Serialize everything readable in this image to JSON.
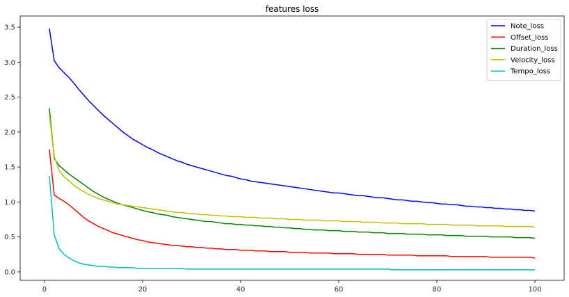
{
  "chart_data": {
    "type": "line",
    "title": "features loss",
    "xlabel": "",
    "ylabel": "",
    "xlim": [
      -4.95,
      105.95
    ],
    "ylim": [
      -0.12,
      3.66
    ],
    "xticks": [
      0,
      20,
      40,
      60,
      80,
      100
    ],
    "xtick_labels": [
      "0",
      "20",
      "40",
      "60",
      "80",
      "100"
    ],
    "yticks": [
      0.0,
      0.5,
      1.0,
      1.5,
      2.0,
      2.5,
      3.0,
      3.5
    ],
    "ytick_labels": [
      "0.0",
      "0.5",
      "1.0",
      "1.5",
      "2.0",
      "2.5",
      "3.0",
      "3.5"
    ],
    "grid": false,
    "legend_position": "top-right",
    "x": [
      1,
      2,
      3,
      4,
      5,
      6,
      7,
      8,
      9,
      10,
      11,
      12,
      13,
      14,
      15,
      16,
      17,
      18,
      19,
      20,
      21,
      22,
      23,
      24,
      25,
      26,
      27,
      28,
      29,
      30,
      31,
      32,
      33,
      34,
      35,
      36,
      37,
      38,
      39,
      40,
      41,
      42,
      43,
      44,
      45,
      46,
      47,
      48,
      49,
      50,
      51,
      52,
      53,
      54,
      55,
      56,
      57,
      58,
      59,
      60,
      61,
      62,
      63,
      64,
      65,
      66,
      67,
      68,
      69,
      70,
      71,
      72,
      73,
      74,
      75,
      76,
      77,
      78,
      79,
      80,
      81,
      82,
      83,
      84,
      85,
      86,
      87,
      88,
      89,
      90,
      91,
      92,
      93,
      94,
      95,
      96,
      97,
      98,
      99,
      100
    ],
    "series": [
      {
        "name": "Note_loss",
        "color": "#0000ff",
        "values": [
          3.48,
          3.02,
          2.92,
          2.85,
          2.78,
          2.7,
          2.61,
          2.53,
          2.45,
          2.38,
          2.31,
          2.24,
          2.18,
          2.12,
          2.06,
          2.0,
          1.95,
          1.9,
          1.86,
          1.82,
          1.78,
          1.75,
          1.71,
          1.68,
          1.65,
          1.62,
          1.59,
          1.57,
          1.54,
          1.52,
          1.5,
          1.48,
          1.46,
          1.44,
          1.42,
          1.4,
          1.38,
          1.37,
          1.35,
          1.33,
          1.32,
          1.3,
          1.29,
          1.28,
          1.27,
          1.26,
          1.25,
          1.24,
          1.23,
          1.22,
          1.21,
          1.2,
          1.19,
          1.18,
          1.17,
          1.16,
          1.15,
          1.14,
          1.13,
          1.13,
          1.12,
          1.11,
          1.1,
          1.09,
          1.09,
          1.08,
          1.07,
          1.06,
          1.06,
          1.05,
          1.04,
          1.03,
          1.03,
          1.02,
          1.01,
          1.01,
          1.0,
          0.99,
          0.99,
          0.98,
          0.97,
          0.97,
          0.96,
          0.96,
          0.95,
          0.94,
          0.94,
          0.93,
          0.93,
          0.92,
          0.92,
          0.91,
          0.91,
          0.9,
          0.9,
          0.89,
          0.89,
          0.88,
          0.88,
          0.87
        ]
      },
      {
        "name": "Offset_loss",
        "color": "#ff0000",
        "values": [
          1.75,
          1.1,
          1.05,
          1.01,
          0.96,
          0.9,
          0.84,
          0.78,
          0.73,
          0.69,
          0.65,
          0.62,
          0.59,
          0.56,
          0.54,
          0.52,
          0.5,
          0.48,
          0.46,
          0.45,
          0.43,
          0.42,
          0.41,
          0.4,
          0.39,
          0.38,
          0.38,
          0.37,
          0.36,
          0.36,
          0.35,
          0.35,
          0.34,
          0.34,
          0.33,
          0.33,
          0.32,
          0.32,
          0.32,
          0.31,
          0.31,
          0.31,
          0.3,
          0.3,
          0.3,
          0.29,
          0.29,
          0.29,
          0.29,
          0.28,
          0.28,
          0.28,
          0.28,
          0.27,
          0.27,
          0.27,
          0.27,
          0.27,
          0.26,
          0.26,
          0.26,
          0.26,
          0.26,
          0.25,
          0.25,
          0.25,
          0.25,
          0.25,
          0.25,
          0.24,
          0.24,
          0.24,
          0.24,
          0.24,
          0.24,
          0.23,
          0.23,
          0.23,
          0.23,
          0.23,
          0.23,
          0.23,
          0.22,
          0.22,
          0.22,
          0.22,
          0.22,
          0.22,
          0.22,
          0.22,
          0.21,
          0.21,
          0.21,
          0.21,
          0.21,
          0.21,
          0.21,
          0.21,
          0.21,
          0.2
        ]
      },
      {
        "name": "Duration_loss",
        "color": "#008000",
        "values": [
          2.34,
          1.62,
          1.52,
          1.46,
          1.4,
          1.35,
          1.3,
          1.25,
          1.2,
          1.15,
          1.11,
          1.07,
          1.04,
          1.01,
          0.98,
          0.96,
          0.94,
          0.92,
          0.9,
          0.88,
          0.86,
          0.85,
          0.83,
          0.82,
          0.81,
          0.79,
          0.78,
          0.77,
          0.76,
          0.75,
          0.74,
          0.73,
          0.72,
          0.72,
          0.71,
          0.7,
          0.69,
          0.69,
          0.68,
          0.68,
          0.67,
          0.67,
          0.66,
          0.66,
          0.65,
          0.65,
          0.64,
          0.64,
          0.63,
          0.63,
          0.62,
          0.62,
          0.61,
          0.61,
          0.6,
          0.6,
          0.6,
          0.59,
          0.59,
          0.59,
          0.58,
          0.58,
          0.58,
          0.57,
          0.57,
          0.57,
          0.56,
          0.56,
          0.56,
          0.55,
          0.55,
          0.55,
          0.55,
          0.54,
          0.54,
          0.54,
          0.54,
          0.53,
          0.53,
          0.53,
          0.53,
          0.52,
          0.52,
          0.52,
          0.52,
          0.51,
          0.51,
          0.51,
          0.51,
          0.51,
          0.5,
          0.5,
          0.5,
          0.5,
          0.5,
          0.49,
          0.49,
          0.49,
          0.49,
          0.48
        ]
      },
      {
        "name": "Velocity_loss",
        "color": "#bfbf00",
        "values": [
          2.25,
          1.65,
          1.45,
          1.36,
          1.3,
          1.24,
          1.19,
          1.15,
          1.11,
          1.08,
          1.05,
          1.03,
          1.01,
          0.99,
          0.97,
          0.96,
          0.95,
          0.94,
          0.93,
          0.92,
          0.91,
          0.9,
          0.89,
          0.88,
          0.87,
          0.86,
          0.85,
          0.85,
          0.84,
          0.83,
          0.83,
          0.82,
          0.82,
          0.81,
          0.81,
          0.8,
          0.8,
          0.79,
          0.79,
          0.79,
          0.78,
          0.78,
          0.78,
          0.77,
          0.77,
          0.77,
          0.76,
          0.76,
          0.76,
          0.75,
          0.75,
          0.75,
          0.74,
          0.74,
          0.74,
          0.74,
          0.73,
          0.73,
          0.73,
          0.73,
          0.72,
          0.72,
          0.72,
          0.72,
          0.71,
          0.71,
          0.71,
          0.71,
          0.7,
          0.7,
          0.7,
          0.7,
          0.69,
          0.69,
          0.69,
          0.69,
          0.69,
          0.68,
          0.68,
          0.68,
          0.68,
          0.68,
          0.67,
          0.67,
          0.67,
          0.67,
          0.67,
          0.66,
          0.66,
          0.66,
          0.66,
          0.66,
          0.66,
          0.65,
          0.65,
          0.65,
          0.65,
          0.65,
          0.65,
          0.64
        ]
      },
      {
        "name": "Tempo_loss",
        "color": "#00bfbf",
        "values": [
          1.37,
          0.53,
          0.33,
          0.25,
          0.2,
          0.16,
          0.13,
          0.11,
          0.1,
          0.09,
          0.08,
          0.08,
          0.07,
          0.07,
          0.06,
          0.06,
          0.06,
          0.06,
          0.05,
          0.05,
          0.05,
          0.05,
          0.05,
          0.05,
          0.05,
          0.05,
          0.05,
          0.05,
          0.04,
          0.04,
          0.04,
          0.04,
          0.04,
          0.04,
          0.04,
          0.04,
          0.04,
          0.04,
          0.04,
          0.04,
          0.04,
          0.04,
          0.04,
          0.04,
          0.04,
          0.04,
          0.04,
          0.04,
          0.04,
          0.04,
          0.04,
          0.04,
          0.04,
          0.04,
          0.04,
          0.04,
          0.04,
          0.04,
          0.04,
          0.04,
          0.04,
          0.04,
          0.04,
          0.04,
          0.04,
          0.04,
          0.04,
          0.04,
          0.04,
          0.04,
          0.03,
          0.03,
          0.03,
          0.03,
          0.03,
          0.03,
          0.03,
          0.03,
          0.03,
          0.03,
          0.03,
          0.03,
          0.03,
          0.03,
          0.03,
          0.03,
          0.03,
          0.03,
          0.03,
          0.03,
          0.03,
          0.03,
          0.03,
          0.03,
          0.03,
          0.03,
          0.03,
          0.03,
          0.03,
          0.03
        ]
      }
    ]
  }
}
